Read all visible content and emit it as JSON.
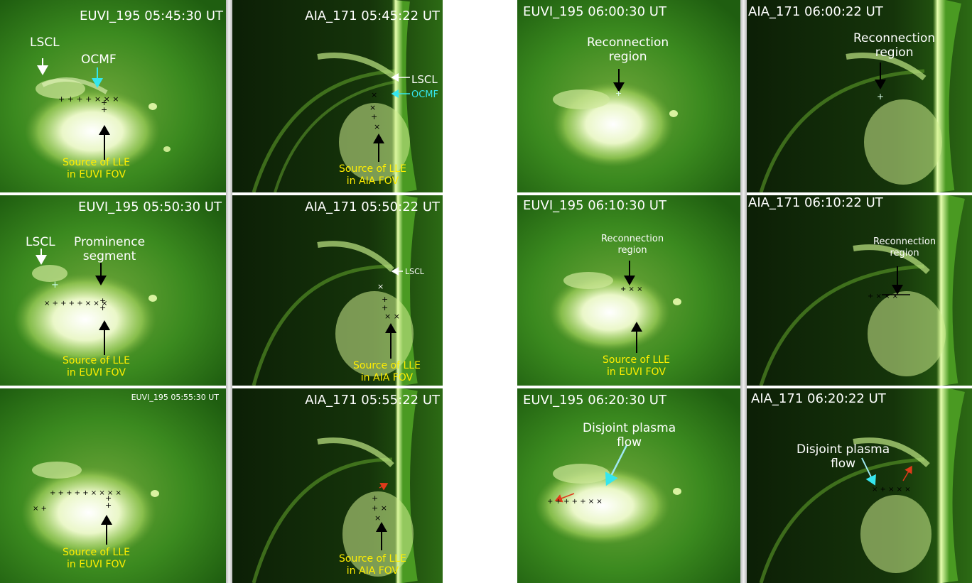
{
  "panels": {
    "euvi_0545": {
      "title": "EUVI_195 05:45:30 UT",
      "label_lscl": "LSCL",
      "label_ocmf": "OCMF",
      "source_l1": "Source of LLE",
      "source_l2": "in EUVI FOV"
    },
    "aia_0545": {
      "title": "AIA_171 05:45:22 UT",
      "label_lscl": "LSCL",
      "label_ocmf": "OCMF",
      "source_l1": "Source of LLE",
      "source_l2": "in AIA FOV"
    },
    "euvi_0550": {
      "title": "EUVI_195 05:50:30 UT",
      "label_lscl": "LSCL",
      "prom_l1": "Prominence",
      "prom_l2": "segment",
      "source_l1": "Source of LLE",
      "source_l2": "in EUVI FOV"
    },
    "aia_0550": {
      "title": "AIA_171 05:50:22 UT",
      "label_lscl": "LSCL",
      "source_l1": "Source of LLE",
      "source_l2": "in AIA FOV"
    },
    "euvi_0555": {
      "title": "EUVI_195 05:55:30 UT",
      "source_l1": "Source of LLE",
      "source_l2": "in EUVI FOV"
    },
    "aia_0555": {
      "title": "AIA_171 05:55:22 UT",
      "source_l1": "Source of LLE",
      "source_l2": "in AIA FOV"
    },
    "euvi_0600": {
      "title": "EUVI_195 06:00:30 UT",
      "recon_l1": "Reconnection",
      "recon_l2": "region"
    },
    "aia_0600": {
      "title": "AIA_171 06:00:22 UT",
      "recon_l1": "Reconnection",
      "recon_l2": "region"
    },
    "euvi_0610": {
      "title": "EUVI_195 06:10:30 UT",
      "recon_l1": "Reconnection",
      "recon_l2": "region",
      "source_l1": "Source of LLE",
      "source_l2": "in EUVI FOV"
    },
    "aia_0610": {
      "title": "AIA_171 06:10:22 UT",
      "recon_l1": "Reconnection",
      "recon_l2": "region"
    },
    "euvi_0620": {
      "title": "EUVI_195 06:20:30 UT",
      "flow_l1": "Disjoint plasma",
      "flow_l2": "flow"
    },
    "aia_0620": {
      "title": "AIA_171 06:20:22 UT",
      "flow_l1": "Disjoint plasma",
      "flow_l2": "flow"
    }
  },
  "colors": {
    "euvi_bg": "#2f7a18",
    "aia_bg": "#0a1a05",
    "annotation": "#ffffff",
    "source_text": "#ffee00",
    "ocmf": "#35e6ee",
    "markers": "#000000",
    "flow_arrow": "#e03a1a"
  }
}
